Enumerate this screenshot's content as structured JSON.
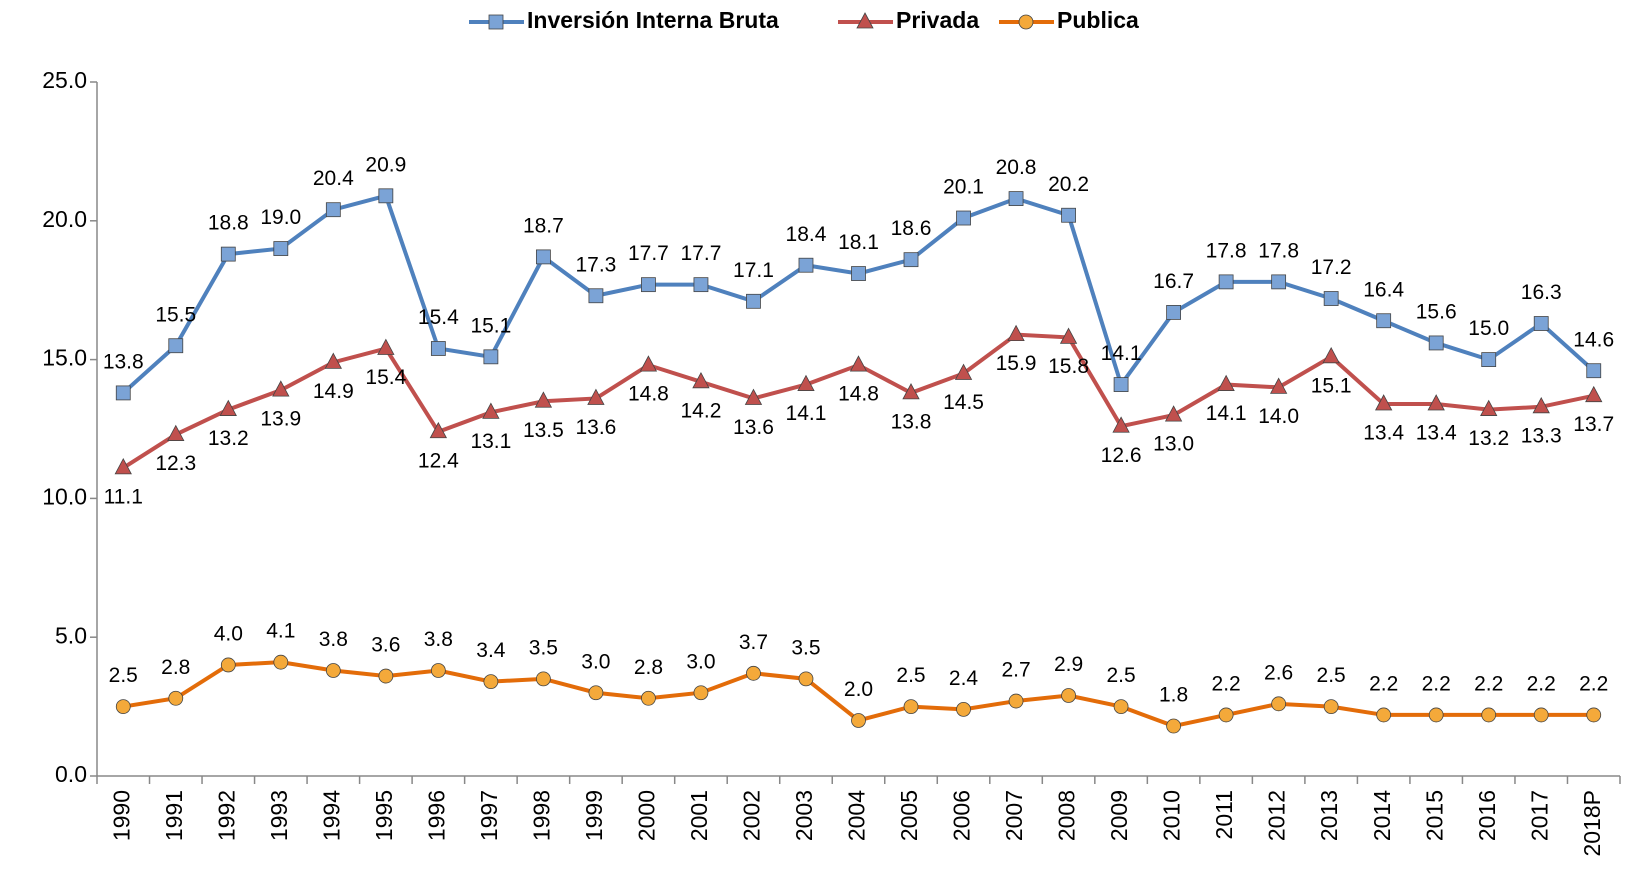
{
  "chart_data": {
    "type": "line",
    "categories": [
      "1990",
      "1991",
      "1992",
      "1993",
      "1994",
      "1995",
      "1996",
      "1997",
      "1998",
      "1999",
      "2000",
      "2001",
      "2002",
      "2003",
      "2004",
      "2005",
      "2006",
      "2007",
      "2008",
      "2009",
      "2010",
      "2011",
      "2012",
      "2013",
      "2014",
      "2015",
      "2016",
      "2017",
      "2018P"
    ],
    "series": [
      {
        "name": "Inversión Interna Bruta",
        "color": "#4f81bd",
        "marker": "square",
        "values": [
          13.8,
          15.5,
          18.8,
          19.0,
          20.4,
          20.9,
          15.4,
          15.1,
          18.7,
          17.3,
          17.7,
          17.7,
          17.1,
          18.4,
          18.1,
          18.6,
          20.1,
          20.8,
          20.2,
          14.1,
          16.7,
          17.8,
          17.8,
          17.2,
          16.4,
          15.6,
          15.0,
          16.3,
          14.6
        ],
        "value_labels": [
          "13.8",
          "15.5",
          "18.8",
          "19.0",
          "20.4",
          "20.9",
          "15.4",
          "15.1",
          "18.7",
          "17.3",
          "17.7",
          "17.7",
          "17.1",
          "18.4",
          "18.1",
          "18.6",
          "20.1",
          "20.8",
          "20.2",
          "14.1",
          "16.7",
          "17.8",
          "17.8",
          "17.2",
          "16.4",
          "15.6",
          "15.0",
          "16.3",
          "14.6"
        ]
      },
      {
        "name": "Privada",
        "color": "#c0504d",
        "marker": "triangle",
        "values": [
          11.1,
          12.3,
          13.2,
          13.9,
          14.9,
          15.4,
          12.4,
          13.1,
          13.5,
          13.6,
          14.8,
          14.2,
          13.6,
          14.1,
          14.8,
          13.8,
          14.5,
          15.9,
          15.8,
          12.6,
          13.0,
          14.1,
          14.0,
          15.1,
          13.4,
          13.4,
          13.2,
          13.3,
          13.7
        ],
        "value_labels": [
          "11.1",
          "12.3",
          "13.2",
          "13.9",
          "14.9",
          "15.4",
          "12.4",
          "13.1",
          "13.5",
          "13.6",
          "14.8",
          "14.2",
          "13.6",
          "14.1",
          "14.8",
          "13.8",
          "14.5",
          "15.9",
          "15.8",
          "12.6",
          "13.0",
          "14.1",
          "14.0",
          "15.1",
          "13.4",
          "13.4",
          "13.2",
          "13.3",
          "13.7"
        ]
      },
      {
        "name": "Publica",
        "color": "#e36c09",
        "marker": "circle",
        "values": [
          2.5,
          2.8,
          4.0,
          4.1,
          3.8,
          3.6,
          3.8,
          3.4,
          3.5,
          3.0,
          2.8,
          3.0,
          3.7,
          3.5,
          2.0,
          2.5,
          2.4,
          2.7,
          2.9,
          2.5,
          1.8,
          2.2,
          2.6,
          2.5,
          2.2,
          2.2,
          2.2,
          2.2,
          2.2
        ],
        "value_labels": [
          "2.5",
          "2.8",
          "4.0",
          "4.1",
          "3.8",
          "3.6",
          "3.8",
          "3.4",
          "3.5",
          "3.0",
          "2.8",
          "3.0",
          "3.7",
          "3.5",
          "2.0",
          "2.5",
          "2.4",
          "2.7",
          "2.9",
          "2.5",
          "1.8",
          "2.2",
          "2.6",
          "2.5",
          "2.2",
          "2.2",
          "2.2",
          "2.2",
          "2.2"
        ]
      }
    ],
    "ylim": [
      0,
      25
    ],
    "yticks": [
      {
        "value": 0,
        "label": "0.0"
      },
      {
        "value": 5,
        "label": "5.0"
      },
      {
        "value": 10,
        "label": "10.0"
      },
      {
        "value": 15,
        "label": "15.0"
      },
      {
        "value": 20,
        "label": "20.0"
      },
      {
        "value": 25,
        "label": "25.0"
      }
    ],
    "legend": "top",
    "grid": false
  }
}
